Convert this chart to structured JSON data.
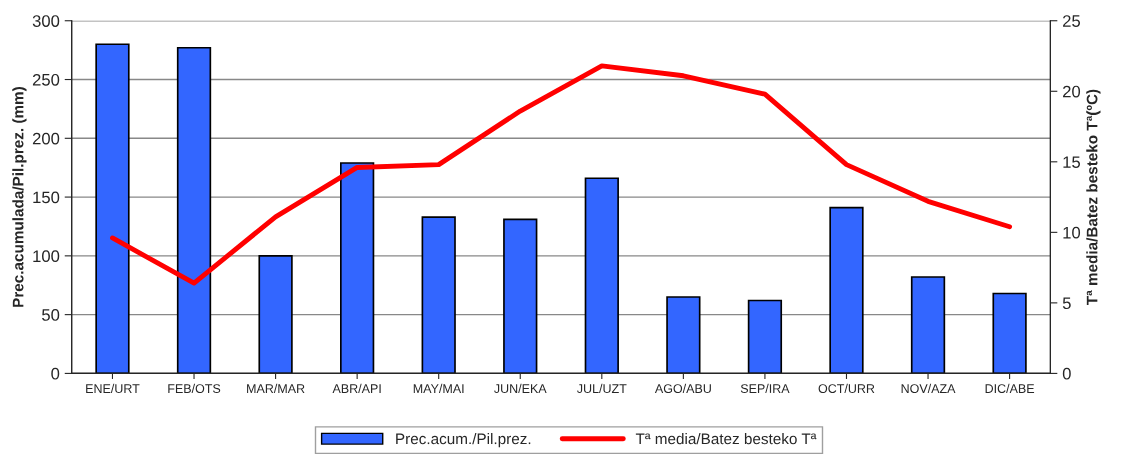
{
  "chart_data": {
    "type": "bar",
    "ylabel": "Prec.acumulada/Pil.prez. (mm)",
    "y2label": "Tª media/Batez besteko Tª(ºC)",
    "categories": [
      "ENE/URT",
      "FEB/OTS",
      "MAR/MAR",
      "ABR/API",
      "MAY/MAI",
      "JUN/EKA",
      "JUL/UZT",
      "AGO/ABU",
      "SEP/IRA",
      "OCT/URR",
      "NOV/AZA",
      "DIC/ABE"
    ],
    "series": [
      {
        "name": "Prec.acum./Pil.prez.",
        "color": "#3366ff",
        "values": [
          280,
          277,
          100,
          179,
          133,
          131,
          166,
          65,
          62,
          141,
          82,
          68
        ]
      },
      {
        "name": "Tª media/Batez besteko Tª",
        "type": "line",
        "axis": "y2",
        "color": "#ff0000",
        "values": [
          9.6,
          6.4,
          11.1,
          14.6,
          14.8,
          18.6,
          21.8,
          21.1,
          19.8,
          14.8,
          12.2,
          10.4
        ]
      }
    ],
    "ylim": [
      0,
      300
    ],
    "yticks": [
      0,
      50,
      100,
      150,
      200,
      250,
      300
    ],
    "y2lim": [
      0,
      25
    ],
    "y2ticks": [
      0,
      5,
      10,
      15,
      20,
      25
    ],
    "grid": "y",
    "legend": "bottom",
    "marker": "none",
    "line_style": "solid"
  }
}
